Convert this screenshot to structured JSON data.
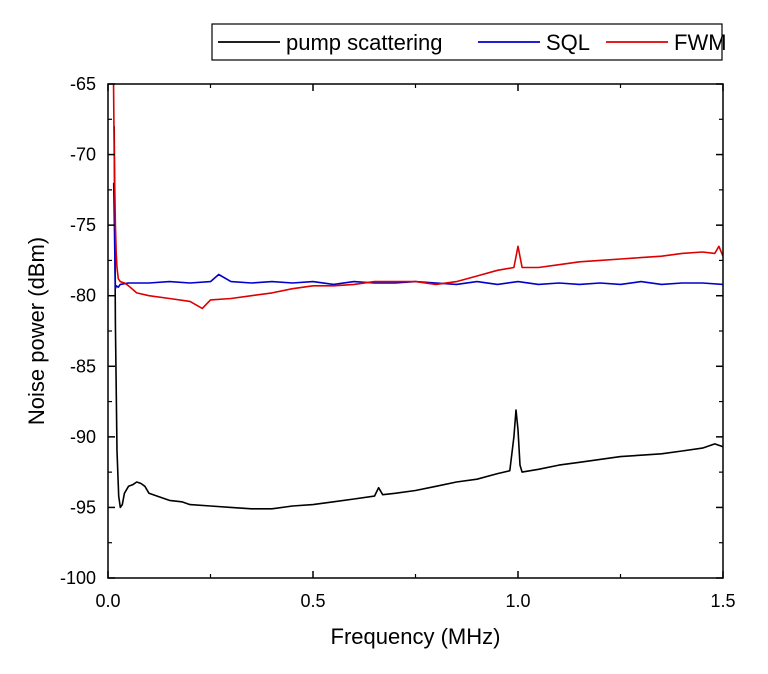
{
  "chart_data": {
    "type": "line",
    "title": "",
    "xlabel": "Frequency (MHz)",
    "ylabel": "Noise power (dBm)",
    "xlim": [
      0.0,
      1.5
    ],
    "ylim": [
      -100,
      -65
    ],
    "xticks": [
      0.0,
      0.5,
      1.0,
      1.5
    ],
    "xtick_labels": [
      "0.0",
      "0.5",
      "1.0",
      "1.5"
    ],
    "yticks": [
      -100,
      -95,
      -90,
      -85,
      -80,
      -75,
      -70,
      -65
    ],
    "ytick_labels": [
      "-100",
      "-95",
      "-90",
      "-85",
      "-80",
      "-75",
      "-70",
      "-65"
    ],
    "grid": false,
    "legend_position": "top-right, outside plot",
    "series": [
      {
        "name": "pump scattering",
        "color": "#000000",
        "x": [
          0.015,
          0.018,
          0.022,
          0.026,
          0.03,
          0.035,
          0.04,
          0.05,
          0.06,
          0.07,
          0.08,
          0.09,
          0.1,
          0.12,
          0.15,
          0.18,
          0.2,
          0.25,
          0.3,
          0.35,
          0.4,
          0.45,
          0.5,
          0.55,
          0.6,
          0.65,
          0.66,
          0.67,
          0.7,
          0.75,
          0.8,
          0.85,
          0.9,
          0.95,
          0.98,
          0.99,
          0.995,
          1.0,
          1.005,
          1.01,
          1.05,
          1.1,
          1.15,
          1.2,
          1.25,
          1.3,
          1.35,
          1.4,
          1.45,
          1.48,
          1.5
        ],
        "values": [
          -68.0,
          -82.0,
          -91.0,
          -94.2,
          -95.0,
          -94.8,
          -94.0,
          -93.5,
          -93.4,
          -93.2,
          -93.3,
          -93.5,
          -94.0,
          -94.2,
          -94.5,
          -94.6,
          -94.8,
          -94.9,
          -95.0,
          -95.1,
          -95.1,
          -94.9,
          -94.8,
          -94.6,
          -94.4,
          -94.2,
          -93.6,
          -94.1,
          -94.0,
          -93.8,
          -93.5,
          -93.2,
          -93.0,
          -92.6,
          -92.4,
          -90.0,
          -88.1,
          -89.5,
          -92.0,
          -92.5,
          -92.3,
          -92.0,
          -91.8,
          -91.6,
          -91.4,
          -91.3,
          -91.2,
          -91.0,
          -90.8,
          -90.5,
          -90.7
        ]
      },
      {
        "name": "SQL",
        "color": "#0000cc",
        "x": [
          0.014,
          0.016,
          0.018,
          0.02,
          0.025,
          0.03,
          0.05,
          0.1,
          0.15,
          0.2,
          0.25,
          0.27,
          0.3,
          0.35,
          0.4,
          0.45,
          0.5,
          0.55,
          0.6,
          0.65,
          0.7,
          0.75,
          0.8,
          0.85,
          0.9,
          0.95,
          1.0,
          1.05,
          1.1,
          1.15,
          1.2,
          1.25,
          1.3,
          1.35,
          1.4,
          1.45,
          1.5
        ],
        "values": [
          -72.0,
          -76.0,
          -79.5,
          -79.3,
          -79.4,
          -79.2,
          -79.1,
          -79.1,
          -79.0,
          -79.1,
          -79.0,
          -78.5,
          -79.0,
          -79.1,
          -79.0,
          -79.1,
          -79.0,
          -79.2,
          -79.0,
          -79.1,
          -79.1,
          -79.0,
          -79.1,
          -79.2,
          -79.0,
          -79.2,
          -79.0,
          -79.2,
          -79.1,
          -79.2,
          -79.1,
          -79.2,
          -79.0,
          -79.2,
          -79.1,
          -79.1,
          -79.2
        ]
      },
      {
        "name": "FWM",
        "color": "#dd0000",
        "x": [
          0.012,
          0.015,
          0.018,
          0.02,
          0.022,
          0.025,
          0.03,
          0.04,
          0.05,
          0.07,
          0.1,
          0.15,
          0.2,
          0.23,
          0.25,
          0.3,
          0.35,
          0.4,
          0.45,
          0.5,
          0.55,
          0.6,
          0.65,
          0.7,
          0.75,
          0.8,
          0.85,
          0.9,
          0.95,
          0.99,
          1.0,
          1.01,
          1.05,
          1.1,
          1.15,
          1.2,
          1.25,
          1.3,
          1.35,
          1.4,
          1.45,
          1.48,
          1.49,
          1.5
        ],
        "values": [
          -60.0,
          -70.0,
          -75.0,
          -77.0,
          -78.0,
          -78.8,
          -79.0,
          -79.1,
          -79.3,
          -79.8,
          -80.0,
          -80.2,
          -80.4,
          -80.9,
          -80.3,
          -80.2,
          -80.0,
          -79.8,
          -79.5,
          -79.3,
          -79.3,
          -79.2,
          -79.0,
          -79.0,
          -79.0,
          -79.2,
          -79.0,
          -78.6,
          -78.2,
          -78.0,
          -76.5,
          -78.0,
          -78.0,
          -77.8,
          -77.6,
          -77.5,
          -77.4,
          -77.3,
          -77.2,
          -77.0,
          -76.9,
          -77.0,
          -76.5,
          -77.2
        ]
      }
    ]
  }
}
